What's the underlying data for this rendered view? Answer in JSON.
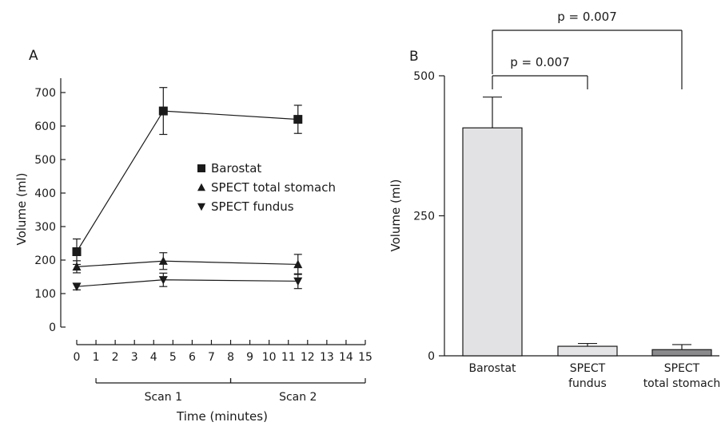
{
  "chart_data": [
    {
      "panel_label": "A",
      "type": "line",
      "xlabel": "Time (minutes)",
      "ylabel": "Volume (ml)",
      "xlim": [
        0,
        15
      ],
      "ylim": [
        0,
        700
      ],
      "x_ticks": [
        0,
        1,
        2,
        3,
        4,
        5,
        6,
        7,
        8,
        9,
        10,
        11,
        12,
        13,
        14,
        15
      ],
      "y_ticks": [
        0,
        100,
        200,
        300,
        400,
        500,
        600,
        700
      ],
      "x_brackets": [
        {
          "label": "Scan 1",
          "from": 1,
          "to": 8
        },
        {
          "label": "Scan 2",
          "from": 8,
          "to": 15
        }
      ],
      "legend_position": "middle-right",
      "series": [
        {
          "name": "Barostat",
          "marker": "square",
          "x": [
            0,
            4.5,
            11.5
          ],
          "y": [
            225,
            645,
            620
          ],
          "err": [
            38,
            70,
            42
          ]
        },
        {
          "name": "SPECT total stomach",
          "marker": "triangle-up",
          "x": [
            0,
            4.5,
            11.5
          ],
          "y": [
            180,
            197,
            187
          ],
          "err": [
            18,
            25,
            30
          ]
        },
        {
          "name": "SPECT fundus",
          "marker": "triangle-down",
          "x": [
            0,
            4.5,
            11.5
          ],
          "y": [
            121,
            141,
            137
          ],
          "err": [
            10,
            20,
            22
          ]
        }
      ]
    },
    {
      "panel_label": "B",
      "type": "bar",
      "ylabel": "Volume (ml)",
      "ylim": [
        0,
        500
      ],
      "y_ticks": [
        0,
        250,
        500
      ],
      "categories": [
        [
          "Barostat"
        ],
        [
          "SPECT",
          "fundus"
        ],
        [
          "SPECT",
          "total stomach"
        ]
      ],
      "values": [
        407,
        17,
        11
      ],
      "err": [
        55,
        5,
        9
      ],
      "bar_colors": [
        "#e2e2e4",
        "#e4e4e6",
        "#8a8a8c"
      ],
      "significance": [
        {
          "label": "p = 0.007",
          "from": 0,
          "to": 1
        },
        {
          "label": "p = 0.007",
          "from": 0,
          "to": 2
        }
      ]
    }
  ]
}
